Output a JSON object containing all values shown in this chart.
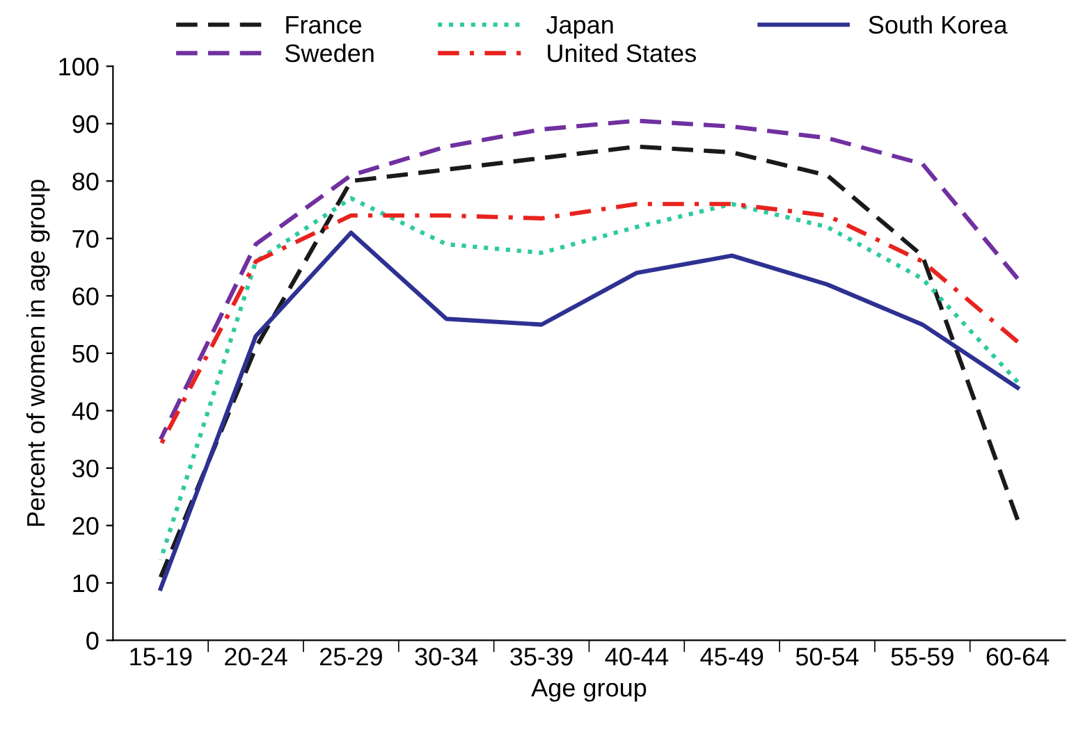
{
  "chart_data": {
    "type": "line",
    "xlabel": "Age group",
    "ylabel": "Percent of women in age group",
    "categories": [
      "15-19",
      "20-24",
      "25-29",
      "30-34",
      "35-39",
      "40-44",
      "45-49",
      "50-54",
      "55-59",
      "60-64"
    ],
    "ylim": [
      0,
      100
    ],
    "yticks": [
      0,
      10,
      20,
      30,
      40,
      50,
      60,
      70,
      80,
      90,
      100
    ],
    "grid": false,
    "legend": "top",
    "marker": "none",
    "series": [
      {
        "name": "France",
        "color": "#1a1a1a",
        "line_style": "dashed",
        "values": [
          11,
          51,
          80,
          82,
          84,
          86,
          85,
          81,
          67,
          21
        ]
      },
      {
        "name": "Japan",
        "color": "#2ec9a0",
        "line_style": "dotted",
        "values": [
          14,
          66,
          77,
          69,
          67.5,
          72,
          76,
          72,
          63,
          45
        ]
      },
      {
        "name": "South Korea",
        "color": "#2e3192",
        "line_style": "solid",
        "values": [
          9,
          53,
          71,
          56,
          55,
          64,
          67,
          62,
          55,
          44
        ]
      },
      {
        "name": "Sweden",
        "color": "#7030a0",
        "line_style": "dashed",
        "values": [
          35,
          69,
          81,
          86,
          89,
          90.5,
          89.5,
          87.5,
          83,
          63
        ]
      },
      {
        "name": "United States",
        "color": "#e8231f",
        "line_style": "dashdot",
        "values": [
          34,
          66,
          74,
          74,
          73.5,
          76,
          76,
          74,
          66,
          52
        ]
      }
    ]
  }
}
